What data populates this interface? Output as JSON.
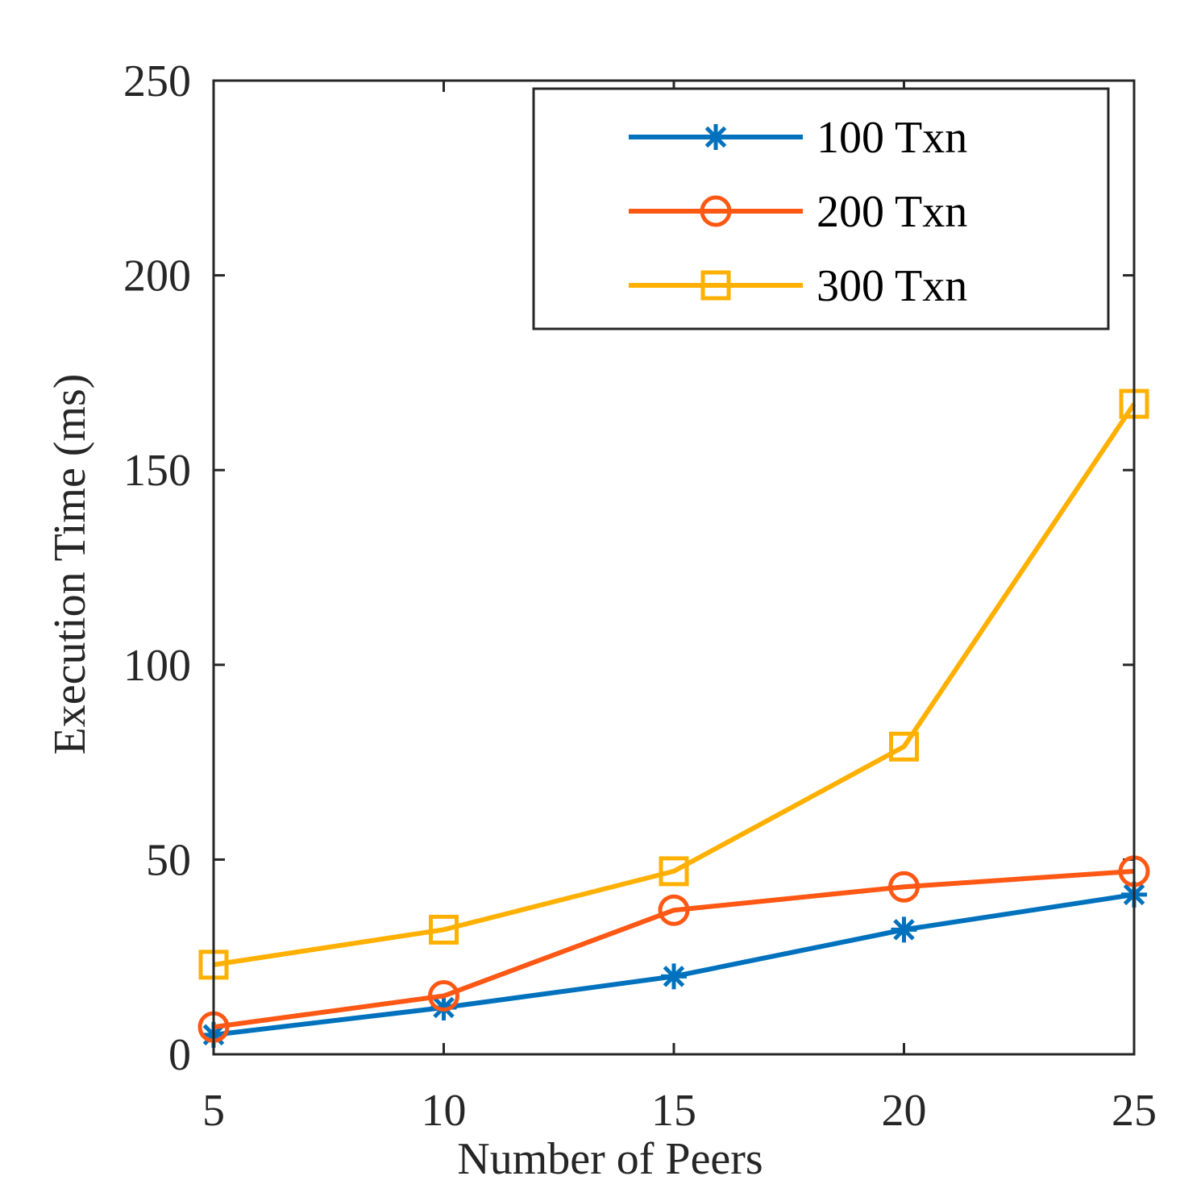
{
  "chart_data": {
    "type": "line",
    "title": "",
    "xlabel": "Number of Peers",
    "ylabel": "Execution Time (ms)",
    "x": [
      5,
      10,
      15,
      20,
      25
    ],
    "xlim": [
      5,
      25
    ],
    "ylim": [
      0,
      250
    ],
    "xticks": [
      "5",
      "10",
      "15",
      "20",
      "25"
    ],
    "yticks": [
      "0",
      "50",
      "100",
      "150",
      "200",
      "250"
    ],
    "xtick_values": [
      5,
      10,
      15,
      20,
      25
    ],
    "ytick_values": [
      0,
      50,
      100,
      150,
      200,
      250
    ],
    "grid": false,
    "legend_position": "top-right",
    "series": [
      {
        "name": "100 Txn",
        "color": "#0072bd",
        "marker": "asterisk",
        "values": [
          5,
          12,
          20,
          32,
          41
        ]
      },
      {
        "name": "200 Txn",
        "color": "#ff5714",
        "marker": "circle",
        "values": [
          7,
          15,
          37,
          43,
          47
        ]
      },
      {
        "name": "300 Txn",
        "color": "#ffb000",
        "marker": "square",
        "values": [
          23,
          32,
          47,
          79,
          167
        ]
      }
    ]
  }
}
